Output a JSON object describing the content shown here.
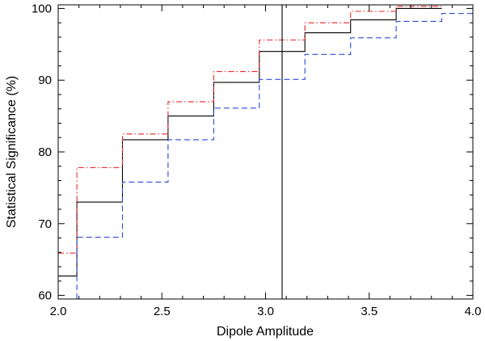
{
  "chart_data": {
    "type": "line",
    "title": "",
    "xlabel": "Dipole Amplitude",
    "ylabel": "Statistical Significance (%)",
    "xlim": [
      2.0,
      4.0
    ],
    "ylim": [
      59.5,
      100.5
    ],
    "xticks": [
      2.0,
      2.5,
      3.0,
      3.5,
      4.0
    ],
    "xtick_labels": [
      "2.0",
      "2.5",
      "3.0",
      "3.5",
      "4.0"
    ],
    "yticks": [
      60,
      70,
      80,
      90,
      100
    ],
    "ytick_labels": [
      "60",
      "70",
      "80",
      "90",
      "100"
    ],
    "grid": false,
    "legend": "none",
    "reference_line": {
      "x": 3.08,
      "color": "#000000",
      "style": "solid"
    },
    "series": [
      {
        "color": "#000000",
        "style": "solid",
        "step": true,
        "x": [
          2.0,
          2.09,
          2.09,
          2.31,
          2.31,
          2.53,
          2.53,
          2.75,
          2.75,
          2.97,
          2.97,
          3.19,
          3.19,
          3.41,
          3.41,
          3.63,
          3.63,
          3.85
        ],
        "y": [
          62.7,
          62.7,
          73.0,
          73.0,
          81.7,
          81.7,
          85.0,
          85.0,
          89.7,
          89.7,
          94.0,
          94.0,
          96.6,
          96.6,
          98.4,
          98.4,
          100.0,
          100.0
        ]
      },
      {
        "color": "#e8262b",
        "style": "dash-dot",
        "step": true,
        "x": [
          2.0,
          2.09,
          2.09,
          2.31,
          2.31,
          2.53,
          2.53,
          2.75,
          2.75,
          2.97,
          2.97,
          3.19,
          3.19,
          3.41,
          3.41,
          3.63,
          3.63,
          3.85
        ],
        "y": [
          65.9,
          65.9,
          77.8,
          77.8,
          82.5,
          82.5,
          87.0,
          87.0,
          91.2,
          91.2,
          95.6,
          95.6,
          98.0,
          98.0,
          99.6,
          99.6,
          100.3,
          100.3
        ]
      },
      {
        "color": "#2b4bd6",
        "style": "dashed",
        "step": true,
        "x": [
          2.09,
          2.09,
          2.31,
          2.31,
          2.53,
          2.53,
          2.75,
          2.75,
          2.97,
          2.97,
          3.19,
          3.19,
          3.41,
          3.41,
          3.63,
          3.63,
          3.85,
          3.85,
          4.0
        ],
        "y": [
          59.5,
          68.1,
          68.1,
          75.8,
          75.8,
          81.7,
          81.7,
          86.1,
          86.1,
          90.1,
          90.1,
          93.6,
          93.6,
          95.9,
          95.9,
          98.2,
          98.2,
          99.3,
          99.3
        ]
      }
    ]
  }
}
